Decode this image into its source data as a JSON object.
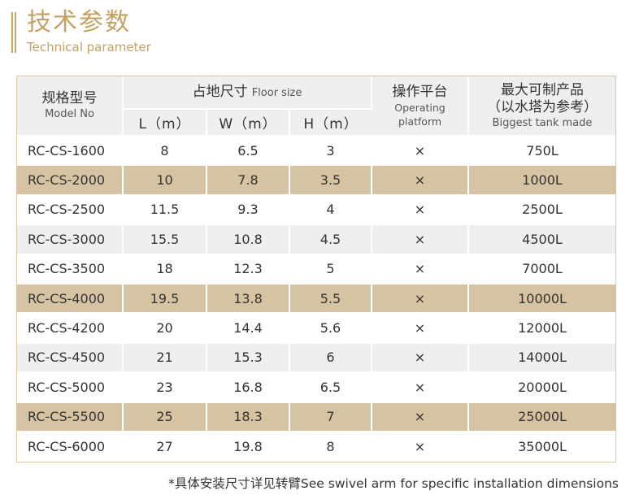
{
  "header": {
    "title_cn": "技术参数",
    "title_en": "Technical parameter",
    "accent_color": "#c5a063"
  },
  "table": {
    "columns": {
      "model": {
        "cn": "规格型号",
        "en": "Model No"
      },
      "floor_size": {
        "cn": "占地尺寸",
        "en": "Floor size"
      },
      "L": "L（m）",
      "W": "W（m）",
      "H": "H（m）",
      "platform": {
        "cn": "操作平台",
        "en": "Operating platform"
      },
      "biggest": {
        "cn1": "最大可制产品",
        "cn2": "（以水塔为参考）",
        "en": "Biggest tank made"
      }
    },
    "row_colors": {
      "white": "#ffffff",
      "gray": "#efefef",
      "tan": "#d6c3a1"
    },
    "rows": [
      {
        "model": "RC-CS-1600",
        "L": "8",
        "W": "6.5",
        "H": "3",
        "platform": "×",
        "biggest": "750L",
        "bg": "white"
      },
      {
        "model": "RC-CS-2000",
        "L": "10",
        "W": "7.8",
        "H": "3.5",
        "platform": "×",
        "biggest": "1000L",
        "bg": "tan"
      },
      {
        "model": "RC-CS-2500",
        "L": "11.5",
        "W": "9.3",
        "H": "4",
        "platform": "×",
        "biggest": "2500L",
        "bg": "white"
      },
      {
        "model": "RC-CS-3000",
        "L": "15.5",
        "W": "10.8",
        "H": "4.5",
        "platform": "×",
        "biggest": "4500L",
        "bg": "gray"
      },
      {
        "model": "RC-CS-3500",
        "L": "18",
        "W": "12.3",
        "H": "5",
        "platform": "×",
        "biggest": "7000L",
        "bg": "white"
      },
      {
        "model": "RC-CS-4000",
        "L": "19.5",
        "W": "13.8",
        "H": "5.5",
        "platform": "×",
        "biggest": "10000L",
        "bg": "tan"
      },
      {
        "model": "RC-CS-4200",
        "L": "20",
        "W": "14.4",
        "H": "5.6",
        "platform": "×",
        "biggest": "12000L",
        "bg": "white"
      },
      {
        "model": "RC-CS-4500",
        "L": "21",
        "W": "15.3",
        "H": "6",
        "platform": "×",
        "biggest": "14000L",
        "bg": "gray"
      },
      {
        "model": "RC-CS-5000",
        "L": "23",
        "W": "16.8",
        "H": "6.5",
        "platform": "×",
        "biggest": "20000L",
        "bg": "white"
      },
      {
        "model": "RC-CS-5500",
        "L": "25",
        "W": "18.3",
        "H": "7",
        "platform": "×",
        "biggest": "25000L",
        "bg": "tan"
      },
      {
        "model": "RC-CS-6000",
        "L": "27",
        "W": "19.8",
        "H": "8",
        "platform": "×",
        "biggest": "35000L",
        "bg": "white"
      }
    ]
  },
  "footnote": "*具体安装尺寸详见转臂See swivel arm for specific installation dimensions"
}
